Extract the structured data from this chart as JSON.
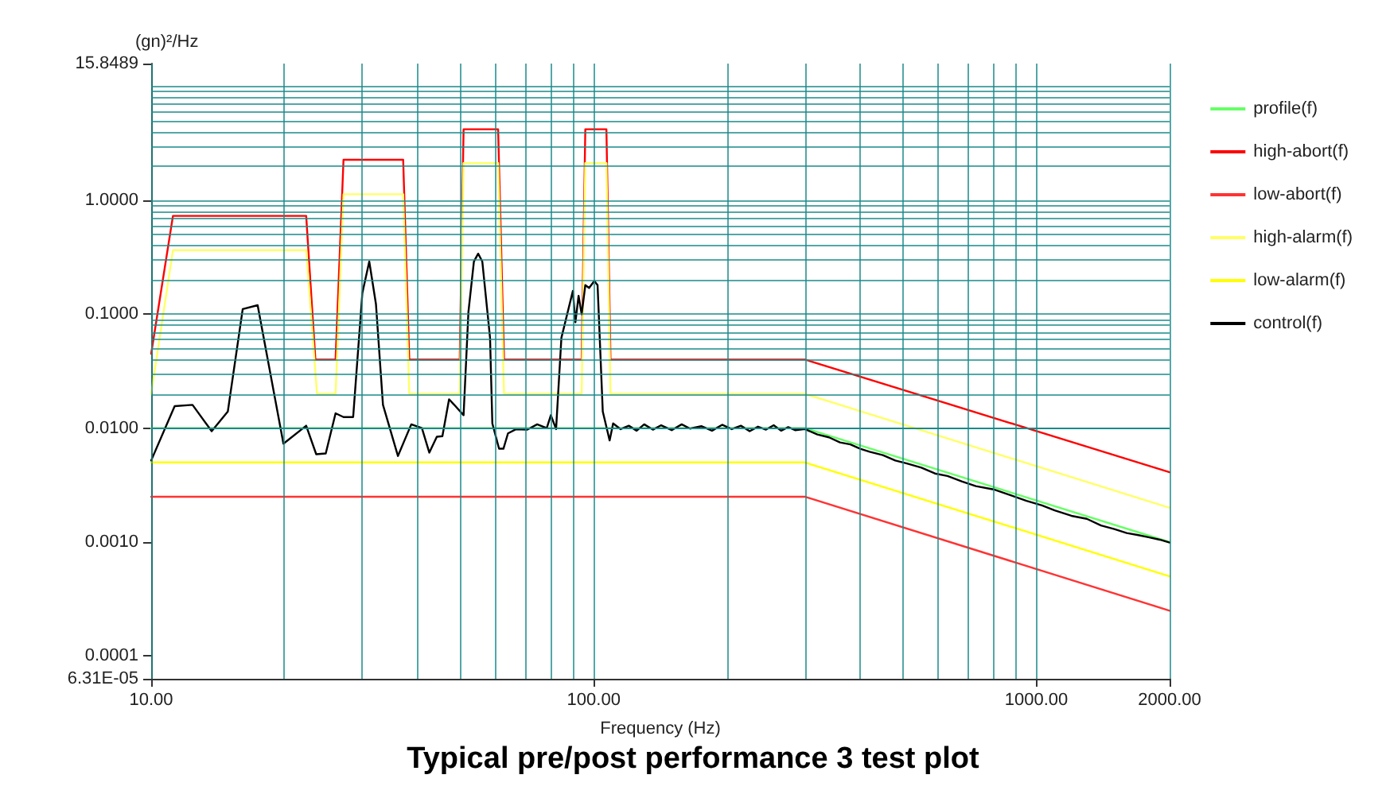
{
  "chart_data": {
    "type": "line",
    "title": "Typical pre/post performance 3 test plot",
    "xlabel": "Frequency (Hz)",
    "ylabel": "(gn)²/Hz",
    "log": "xy",
    "grid": true,
    "legend": "right",
    "marker": "none",
    "line_style": "solid",
    "xlim": [
      10,
      2000
    ],
    "xticks": [
      {
        "value": 10,
        "label": "10.00"
      },
      {
        "value": 100,
        "label": "100.00"
      },
      {
        "value": 1000,
        "label": "1000.00"
      },
      {
        "value": 2000,
        "label": "2000.00"
      }
    ],
    "ylim": [
      6.31e-05,
      15.8489
    ],
    "yticks": [
      {
        "value": 6.31e-05,
        "label": "6.31E-05"
      },
      {
        "value": 0.0001,
        "label": "0.0001"
      },
      {
        "value": 0.001,
        "label": "0.0010"
      },
      {
        "value": 0.01,
        "label": "0.0100"
      },
      {
        "value": 0.1,
        "label": "0.1000"
      },
      {
        "value": 1,
        "label": "1.0000"
      },
      15.8489
    ],
    "series": [
      {
        "name": "profile(f)",
        "color": "#66ff66",
        "x": [
          10,
          300,
          2000
        ],
        "values": [
          0.01,
          0.01,
          0.001
        ]
      },
      {
        "name": "high-abort(f)",
        "color": "#ff0000",
        "x": [
          10,
          11.2,
          22.4,
          23.5,
          26.1,
          27.2,
          37.1,
          38.3,
          49.8,
          50.8,
          60.8,
          62.7,
          93.9,
          95.7,
          106.8,
          109.1,
          300,
          2000
        ],
        "values": [
          0.045,
          0.73,
          0.73,
          0.04,
          0.04,
          2.27,
          2.27,
          0.04,
          0.04,
          4.2,
          4.2,
          0.04,
          0.04,
          4.2,
          4.2,
          0.04,
          0.04,
          0.0041
        ]
      },
      {
        "name": "low-abort(f)",
        "color": "#ff3333",
        "x": [
          10,
          300,
          2000
        ],
        "values": [
          0.0025,
          0.0025,
          0.00025
        ]
      },
      {
        "name": "high-alarm(f)",
        "color": "#ffff66",
        "x": [
          10,
          11.2,
          22.4,
          23.7,
          26.1,
          27.2,
          37.1,
          38.3,
          49.8,
          50.8,
          60.8,
          62.7,
          93.9,
          95.7,
          106.8,
          109.1,
          300,
          2000
        ],
        "values": [
          0.02,
          0.365,
          0.365,
          0.02,
          0.02,
          1.13,
          1.13,
          0.02,
          0.02,
          2.12,
          2.12,
          0.02,
          0.02,
          2.12,
          2.12,
          0.02,
          0.02,
          0.002
        ]
      },
      {
        "name": "low-alarm(f)",
        "color": "#ffff00",
        "x": [
          10,
          300,
          2000
        ],
        "values": [
          0.005,
          0.005,
          0.0005
        ]
      },
      {
        "name": "control(f)",
        "color": "#000000",
        "x": [
          10,
          11.3,
          12.4,
          13.7,
          14.9,
          16.1,
          17.4,
          19.9,
          22.4,
          23.6,
          24.8,
          26.1,
          27.2,
          28.6,
          30,
          31.1,
          32.2,
          33.4,
          36.1,
          38.7,
          40.9,
          42.5,
          44.2,
          45.5,
          47.1,
          48.7,
          50.8,
          52.1,
          53.6,
          54.8,
          56,
          58.3,
          59,
          61.1,
          62.5,
          64,
          66.8,
          70.8,
          74.5,
          78.3,
          80,
          82.2,
          84.5,
          89.7,
          90.9,
          92.4,
          93.9,
          95.7,
          97.6,
          100.3,
          102,
          104.8,
          108.6,
          110.6,
          115,
          120,
          125,
          130,
          136,
          142,
          150,
          158,
          165,
          175,
          185,
          195,
          205,
          215,
          225,
          235,
          245,
          255,
          265,
          275,
          285,
          300,
          320,
          340,
          360,
          380,
          400,
          420,
          450,
          480,
          510,
          550,
          590,
          630,
          680,
          730,
          800,
          870,
          950,
          1030,
          1100,
          1200,
          1300,
          1400,
          1500,
          1600,
          1700,
          1800,
          1900,
          2000
        ],
        "values": [
          0.0052,
          0.0156,
          0.016,
          0.0094,
          0.014,
          0.111,
          0.12,
          0.0073,
          0.0105,
          0.0059,
          0.006,
          0.0135,
          0.0125,
          0.0125,
          0.153,
          0.29,
          0.123,
          0.016,
          0.0057,
          0.0108,
          0.01,
          0.0061,
          0.0084,
          0.0085,
          0.0179,
          0.0156,
          0.013,
          0.105,
          0.29,
          0.34,
          0.29,
          0.062,
          0.011,
          0.0066,
          0.0066,
          0.009,
          0.0098,
          0.0097,
          0.0108,
          0.01,
          0.013,
          0.0098,
          0.062,
          0.16,
          0.085,
          0.145,
          0.1,
          0.18,
          0.17,
          0.196,
          0.18,
          0.014,
          0.0078,
          0.011,
          0.0098,
          0.0105,
          0.0095,
          0.0108,
          0.0097,
          0.0106,
          0.0096,
          0.0108,
          0.0099,
          0.0104,
          0.0095,
          0.0107,
          0.0098,
          0.0105,
          0.0094,
          0.0103,
          0.0097,
          0.0106,
          0.0095,
          0.0102,
          0.0096,
          0.0098,
          0.0088,
          0.0083,
          0.0075,
          0.0072,
          0.0066,
          0.0062,
          0.0058,
          0.0052,
          0.0049,
          0.0045,
          0.004,
          0.0038,
          0.0034,
          0.0031,
          0.0029,
          0.0026,
          0.0023,
          0.0021,
          0.0019,
          0.0017,
          0.0016,
          0.0014,
          0.0013,
          0.0012,
          0.00115,
          0.0011,
          0.00105,
          0.00099
        ]
      }
    ]
  }
}
